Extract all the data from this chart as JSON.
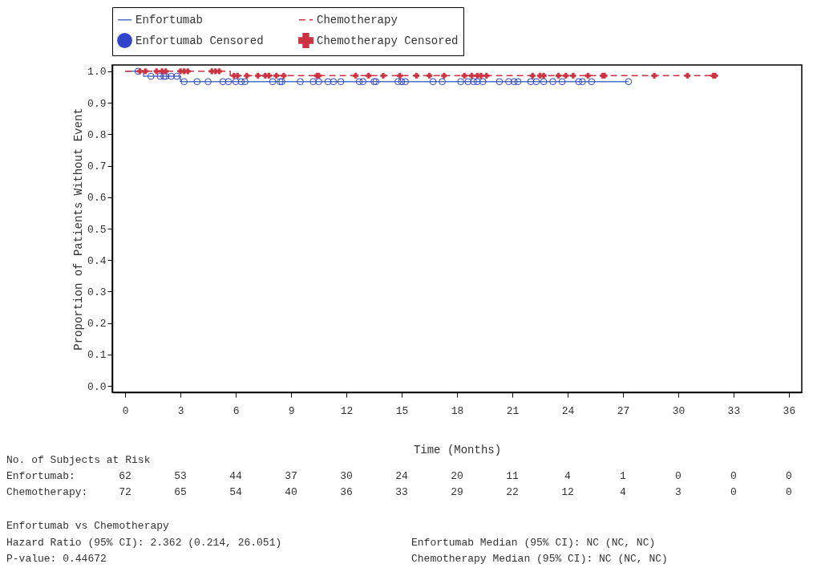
{
  "chart_data": {
    "type": "step",
    "xlabel": "Time (Months)",
    "ylabel": "Proportion of Patients Without Event",
    "xlim": [
      -0.7,
      36.7
    ],
    "ylim": [
      -0.02,
      1.02
    ],
    "xticks": [
      0,
      3,
      6,
      9,
      12,
      15,
      18,
      21,
      24,
      27,
      30,
      33,
      36
    ],
    "yticks": [
      {
        "value": 0,
        "label": "0.0"
      },
      0.1,
      0.2,
      0.3,
      0.4,
      0.5,
      0.6,
      0.7,
      0.8,
      0.9,
      {
        "value": 1,
        "label": "1.0"
      }
    ],
    "grid": false,
    "legend": "top",
    "series": [
      {
        "name": "Enfortumab",
        "color": "#4f73c4",
        "line_style": "solid",
        "marker": "none",
        "x": [
          0,
          1.0,
          3.0,
          27.3
        ],
        "values": [
          1.0,
          0.984,
          0.967,
          0.967
        ]
      },
      {
        "name": "Chemotherapy",
        "color": "#cc3340",
        "line_style": "dashed",
        "marker": "none",
        "x": [
          0,
          5.7,
          32.1
        ],
        "values": [
          1.0,
          0.986,
          0.986
        ]
      },
      {
        "name": "Enfortumab Censored",
        "type": "scatter",
        "color": "#3344cc",
        "marker": "circle",
        "x": [
          0.7,
          1.4,
          1.9,
          2.1,
          2.2,
          2.5,
          2.8,
          3.2,
          3.9,
          4.5,
          5.3,
          5.6,
          6.0,
          6.3,
          6.5,
          8.0,
          8.4,
          8.5,
          9.5,
          10.2,
          10.5,
          11.0,
          11.3,
          11.7,
          12.7,
          12.9,
          13.5,
          13.6,
          14.8,
          15.0,
          15.2,
          16.7,
          17.2,
          18.2,
          18.6,
          18.9,
          19.1,
          19.4,
          20.3,
          20.8,
          21.1,
          21.3,
          22.0,
          22.3,
          22.7,
          23.2,
          23.7,
          24.6,
          24.8,
          25.3,
          27.3
        ],
        "values": [
          1.0,
          0.984,
          0.984,
          0.984,
          0.984,
          0.984,
          0.984,
          0.967,
          0.967,
          0.967,
          0.967,
          0.967,
          0.967,
          0.967,
          0.967,
          0.967,
          0.967,
          0.967,
          0.967,
          0.967,
          0.967,
          0.967,
          0.967,
          0.967,
          0.967,
          0.967,
          0.967,
          0.967,
          0.967,
          0.967,
          0.967,
          0.967,
          0.967,
          0.967,
          0.967,
          0.967,
          0.967,
          0.967,
          0.967,
          0.967,
          0.967,
          0.967,
          0.967,
          0.967,
          0.967,
          0.967,
          0.967,
          0.967,
          0.967,
          0.967,
          0.967
        ]
      },
      {
        "name": "Chemotherapy Censored",
        "type": "scatter",
        "color": "#cc3340",
        "marker": "cross",
        "x": [
          0.8,
          1.1,
          1.7,
          2.0,
          2.2,
          3.0,
          3.2,
          3.4,
          4.7,
          4.9,
          5.1,
          5.9,
          6.1,
          6.6,
          7.2,
          7.6,
          7.8,
          8.2,
          8.6,
          10.4,
          10.5,
          12.5,
          13.2,
          14.0,
          14.9,
          15.8,
          16.5,
          17.3,
          18.4,
          18.8,
          19.1,
          19.3,
          19.6,
          22.1,
          22.5,
          22.7,
          23.5,
          23.9,
          24.3,
          25.1,
          25.9,
          26.0,
          28.7,
          30.5,
          31.9,
          32.0
        ],
        "values": [
          1.0,
          1.0,
          1.0,
          1.0,
          1.0,
          1.0,
          1.0,
          1.0,
          1.0,
          1.0,
          1.0,
          0.986,
          0.986,
          0.986,
          0.986,
          0.986,
          0.986,
          0.986,
          0.986,
          0.986,
          0.986,
          0.986,
          0.986,
          0.986,
          0.986,
          0.986,
          0.986,
          0.986,
          0.986,
          0.986,
          0.986,
          0.986,
          0.986,
          0.986,
          0.986,
          0.986,
          0.986,
          0.986,
          0.986,
          0.986,
          0.986,
          0.986,
          0.986,
          0.986,
          0.986,
          0.986
        ]
      }
    ],
    "annotations": [
      "No. of Subjects at Risk",
      "Enfortumab: 62 53 44 37 30 24 20 11 4 1 0 0 0",
      "Chemotherapy: 72 65 54 40 36 33 29 22 12 4 3 0 0",
      "Enfortumab vs Chemotherapy",
      "Hazard Ratio (95% CI): 2.362 (0.214, 26.051)",
      "P-value: 0.44672",
      "Enfortumab Median (95% CI): NC (NC, NC)",
      "Chemotherapy Median (95% CI): NC (NC, NC)"
    ]
  }
}
